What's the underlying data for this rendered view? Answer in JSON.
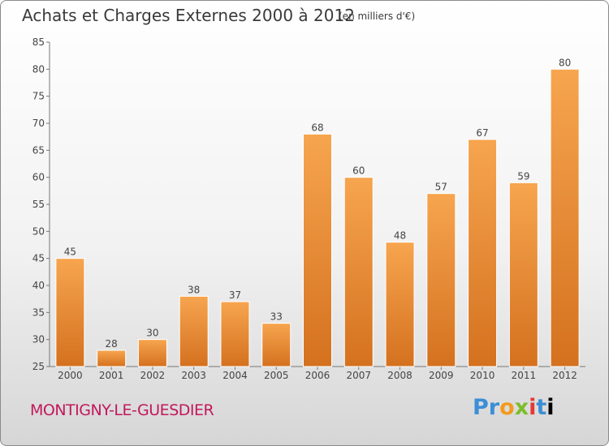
{
  "header": {
    "title": "Achats et Charges Externes 2000 à 2012",
    "unit": "(en milliers d'€)"
  },
  "footer": {
    "city": "MONTIGNY-LE-GUESDIER",
    "logo": [
      "P",
      "r",
      "o",
      "x",
      "i",
      "t",
      "i"
    ]
  },
  "colors": {
    "bar_top": "#f7a54f",
    "bar_bottom": "#d4711f",
    "city": "#c2185b"
  },
  "chart_data": {
    "type": "bar",
    "categories": [
      "2000",
      "2001",
      "2002",
      "2003",
      "2004",
      "2005",
      "2006",
      "2007",
      "2008",
      "2009",
      "2010",
      "2011",
      "2012"
    ],
    "values": [
      45,
      28,
      30,
      38,
      37,
      33,
      68,
      60,
      48,
      57,
      67,
      59,
      80
    ],
    "ylim": [
      25,
      85
    ],
    "yticks": [
      25,
      30,
      35,
      40,
      45,
      50,
      55,
      60,
      65,
      70,
      75,
      80,
      85
    ],
    "grid": false,
    "data_labels": true
  }
}
